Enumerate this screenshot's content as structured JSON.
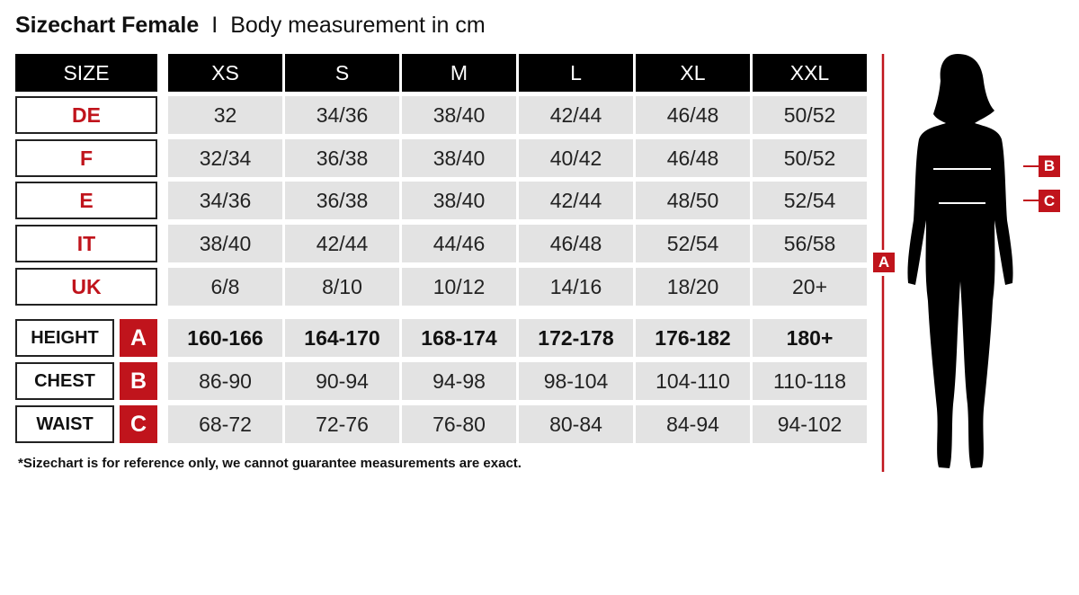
{
  "title": {
    "bold": "Sizechart Female",
    "separator": "I",
    "subtitle": "Body measurement in cm"
  },
  "header": {
    "label": "SIZE",
    "sizes": [
      "XS",
      "S",
      "M",
      "L",
      "XL",
      "XXL"
    ]
  },
  "conversion_rows": [
    {
      "label": "DE",
      "values": [
        "32",
        "34/36",
        "38/40",
        "42/44",
        "46/48",
        "50/52"
      ]
    },
    {
      "label": "F",
      "values": [
        "32/34",
        "36/38",
        "38/40",
        "40/42",
        "46/48",
        "50/52"
      ]
    },
    {
      "label": "E",
      "values": [
        "34/36",
        "36/38",
        "38/40",
        "42/44",
        "48/50",
        "52/54"
      ]
    },
    {
      "label": "IT",
      "values": [
        "38/40",
        "42/44",
        "44/46",
        "46/48",
        "52/54",
        "56/58"
      ]
    },
    {
      "label": "UK",
      "values": [
        "6/8",
        "8/10",
        "10/12",
        "14/16",
        "18/20",
        "20+"
      ]
    }
  ],
  "measurement_rows": [
    {
      "label": "HEIGHT",
      "letter": "A",
      "values": [
        "160-166",
        "164-170",
        "168-174",
        "172-178",
        "176-182",
        "180+"
      ]
    },
    {
      "label": "CHEST",
      "letter": "B",
      "values": [
        "86-90",
        "90-94",
        "94-98",
        "98-104",
        "104-110",
        "110-118"
      ]
    },
    {
      "label": "WAIST",
      "letter": "C",
      "values": [
        "68-72",
        "72-76",
        "76-80",
        "80-84",
        "84-94",
        "94-102"
      ]
    }
  ],
  "footnote": "*Sizechart is for reference only, we cannot guarantee measurements are exact.",
  "figure": {
    "height_marker": "A",
    "chest_marker": "B",
    "waist_marker": "C"
  },
  "colors": {
    "accent": "#c0141c",
    "header_bg": "#000000",
    "cell_bg": "#e3e3e3"
  }
}
